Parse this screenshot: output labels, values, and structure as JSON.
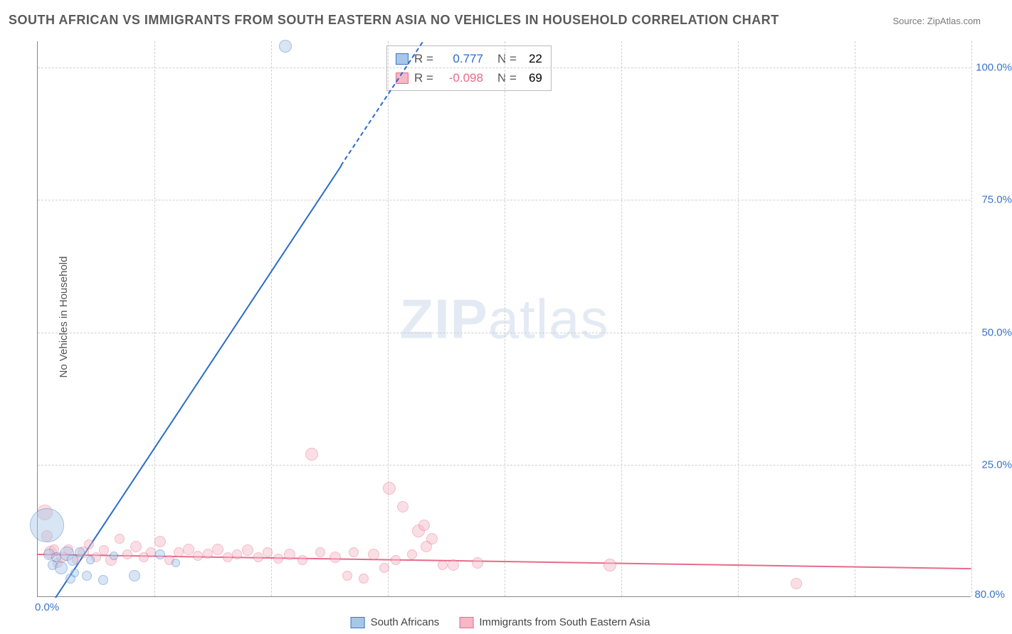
{
  "title": "SOUTH AFRICAN VS IMMIGRANTS FROM SOUTH EASTERN ASIA NO VEHICLES IN HOUSEHOLD CORRELATION CHART",
  "source_label": "Source: ZipAtlas.com",
  "y_axis_label": "No Vehicles in Household",
  "watermark": "ZIPatlas",
  "chart": {
    "type": "scatter",
    "xlim": [
      0,
      80
    ],
    "ylim": [
      0,
      105
    ],
    "x_ticks": [
      0,
      10,
      20,
      30,
      40,
      50,
      60,
      70,
      80
    ],
    "x_tick_labels": {
      "0": "0.0%",
      "80": "80.0%"
    },
    "y_ticks": [
      25,
      50,
      75,
      100
    ],
    "y_tick_labels": {
      "25": "25.0%",
      "50": "50.0%",
      "75": "75.0%",
      "100": "100.0%"
    },
    "background_color": "#ffffff",
    "grid_color": "#d0d0d0",
    "axis_color": "#888888"
  },
  "series": {
    "a": {
      "label": "South Africans",
      "fill_color": "#a8c7e8",
      "stroke_color": "#3a74c7",
      "fill_opacity": 0.45,
      "line_color": "#2a6cc7",
      "line_width": 2,
      "regression": {
        "r": "0.777",
        "n": "22",
        "x0": 1.5,
        "y0": 0,
        "x1": 33,
        "y1": 105,
        "dash_from_x": 26
      },
      "points": [
        {
          "x": 0.8,
          "y": 13.5,
          "r": 24
        },
        {
          "x": 1.0,
          "y": 8.0,
          "r": 8
        },
        {
          "x": 1.3,
          "y": 6.0,
          "r": 7
        },
        {
          "x": 1.6,
          "y": 7.5,
          "r": 7
        },
        {
          "x": 2.0,
          "y": 5.5,
          "r": 9
        },
        {
          "x": 2.5,
          "y": 8.2,
          "r": 10
        },
        {
          "x": 2.8,
          "y": 3.5,
          "r": 7
        },
        {
          "x": 3.0,
          "y": 7.0,
          "r": 8
        },
        {
          "x": 3.2,
          "y": 4.5,
          "r": 6
        },
        {
          "x": 3.6,
          "y": 8.5,
          "r": 7
        },
        {
          "x": 4.2,
          "y": 4.0,
          "r": 7
        },
        {
          "x": 4.5,
          "y": 7.0,
          "r": 6
        },
        {
          "x": 5.6,
          "y": 3.2,
          "r": 7
        },
        {
          "x": 6.5,
          "y": 7.8,
          "r": 6
        },
        {
          "x": 8.3,
          "y": 4.0,
          "r": 8
        },
        {
          "x": 10.5,
          "y": 8.0,
          "r": 7
        },
        {
          "x": 11.8,
          "y": 6.5,
          "r": 6
        },
        {
          "x": 21.2,
          "y": 104,
          "r": 9
        }
      ]
    },
    "b": {
      "label": "Immigrants from South Eastern Asia",
      "fill_color": "#f5b8c6",
      "stroke_color": "#e86a8a",
      "fill_opacity": 0.45,
      "line_color": "#e86a8a",
      "line_width": 2,
      "regression": {
        "r": "-0.098",
        "n": "69",
        "x0": 0,
        "y0": 8.2,
        "x1": 80,
        "y1": 5.5
      },
      "points": [
        {
          "x": 0.6,
          "y": 16.0,
          "r": 11
        },
        {
          "x": 0.8,
          "y": 11.5,
          "r": 8
        },
        {
          "x": 1.1,
          "y": 8.5,
          "r": 9
        },
        {
          "x": 1.4,
          "y": 9.0,
          "r": 7
        },
        {
          "x": 1.7,
          "y": 6.5,
          "r": 7
        },
        {
          "x": 2.1,
          "y": 7.5,
          "r": 8
        },
        {
          "x": 2.6,
          "y": 9.0,
          "r": 7
        },
        {
          "x": 3.3,
          "y": 7.0,
          "r": 6
        },
        {
          "x": 3.9,
          "y": 8.5,
          "r": 8
        },
        {
          "x": 4.4,
          "y": 10.0,
          "r": 7
        },
        {
          "x": 5.0,
          "y": 7.5,
          "r": 7
        },
        {
          "x": 5.7,
          "y": 8.8,
          "r": 7
        },
        {
          "x": 6.3,
          "y": 7.0,
          "r": 8
        },
        {
          "x": 7.0,
          "y": 11.0,
          "r": 7
        },
        {
          "x": 7.7,
          "y": 8.0,
          "r": 7
        },
        {
          "x": 8.4,
          "y": 9.5,
          "r": 8
        },
        {
          "x": 9.1,
          "y": 7.5,
          "r": 7
        },
        {
          "x": 9.7,
          "y": 8.5,
          "r": 7
        },
        {
          "x": 10.5,
          "y": 10.5,
          "r": 8
        },
        {
          "x": 11.3,
          "y": 7.0,
          "r": 7
        },
        {
          "x": 12.1,
          "y": 8.5,
          "r": 7
        },
        {
          "x": 12.9,
          "y": 9.0,
          "r": 8
        },
        {
          "x": 13.7,
          "y": 7.8,
          "r": 7
        },
        {
          "x": 14.6,
          "y": 8.2,
          "r": 7
        },
        {
          "x": 15.4,
          "y": 9.0,
          "r": 8
        },
        {
          "x": 16.3,
          "y": 7.5,
          "r": 7
        },
        {
          "x": 17.1,
          "y": 8.0,
          "r": 7
        },
        {
          "x": 18.0,
          "y": 8.8,
          "r": 8
        },
        {
          "x": 18.9,
          "y": 7.5,
          "r": 7
        },
        {
          "x": 19.7,
          "y": 8.5,
          "r": 7
        },
        {
          "x": 20.6,
          "y": 7.2,
          "r": 7
        },
        {
          "x": 21.6,
          "y": 8.0,
          "r": 8
        },
        {
          "x": 22.7,
          "y": 7.0,
          "r": 7
        },
        {
          "x": 23.5,
          "y": 27.0,
          "r": 9
        },
        {
          "x": 24.2,
          "y": 8.5,
          "r": 7
        },
        {
          "x": 25.5,
          "y": 7.5,
          "r": 8
        },
        {
          "x": 26.5,
          "y": 4.0,
          "r": 7
        },
        {
          "x": 27.1,
          "y": 8.5,
          "r": 7
        },
        {
          "x": 27.9,
          "y": 3.5,
          "r": 7
        },
        {
          "x": 28.8,
          "y": 8.0,
          "r": 8
        },
        {
          "x": 29.7,
          "y": 5.5,
          "r": 7
        },
        {
          "x": 30.1,
          "y": 20.5,
          "r": 9
        },
        {
          "x": 30.7,
          "y": 7.0,
          "r": 7
        },
        {
          "x": 31.3,
          "y": 17.0,
          "r": 8
        },
        {
          "x": 32.1,
          "y": 8.0,
          "r": 7
        },
        {
          "x": 32.6,
          "y": 12.5,
          "r": 9
        },
        {
          "x": 33.1,
          "y": 13.5,
          "r": 8
        },
        {
          "x": 33.3,
          "y": 9.5,
          "r": 8
        },
        {
          "x": 33.8,
          "y": 11.0,
          "r": 8
        },
        {
          "x": 34.7,
          "y": 6.0,
          "r": 7
        },
        {
          "x": 35.6,
          "y": 6.0,
          "r": 8
        },
        {
          "x": 37.7,
          "y": 6.5,
          "r": 8
        },
        {
          "x": 49.0,
          "y": 6.0,
          "r": 9
        },
        {
          "x": 65.0,
          "y": 2.5,
          "r": 8
        }
      ]
    }
  }
}
